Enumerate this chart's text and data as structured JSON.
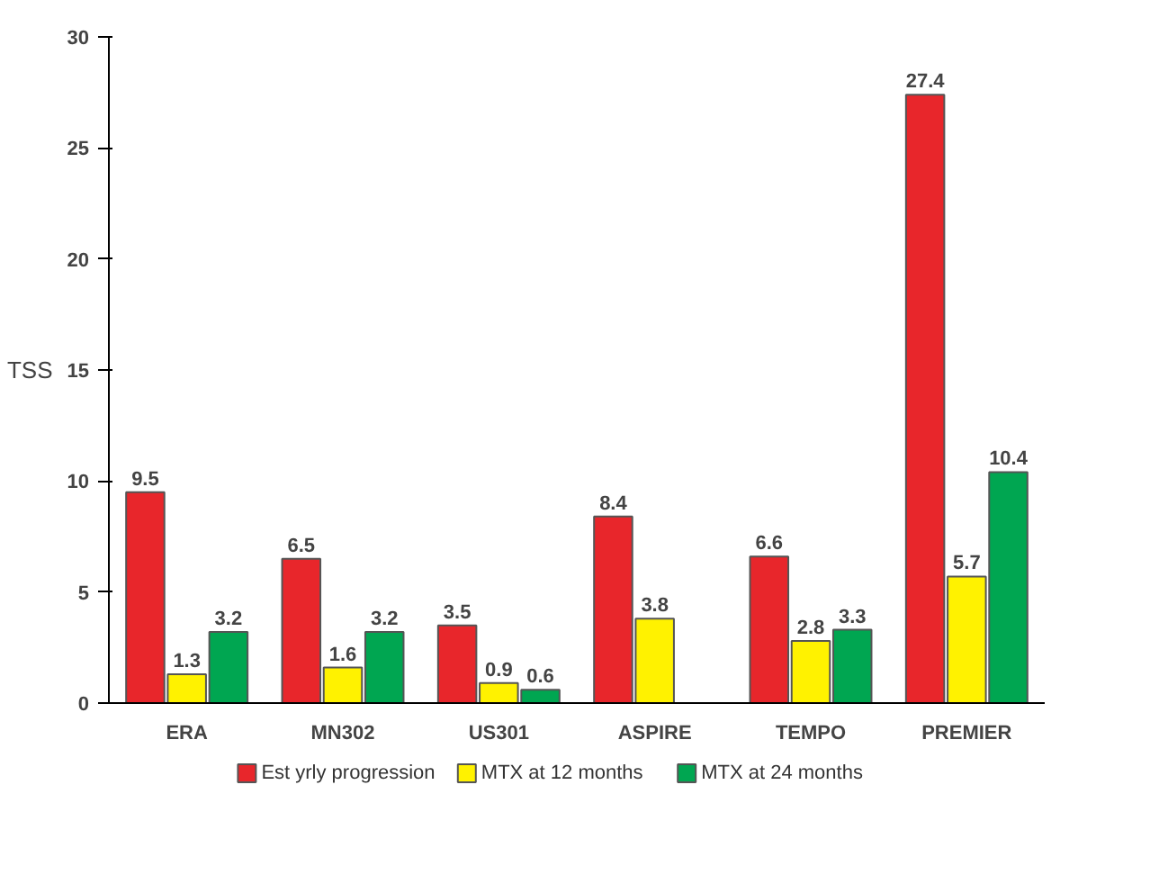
{
  "chart_data": {
    "type": "bar",
    "ylabel": "TSS",
    "categories": [
      "ERA",
      "MN302",
      "US301",
      "ASPIRE",
      "TEMPO",
      "PREMIER"
    ],
    "series": [
      {
        "name": "Est yrly progression",
        "color": "#e8262b",
        "values": [
          9.5,
          6.5,
          3.5,
          8.4,
          6.6,
          27.4
        ]
      },
      {
        "name": "MTX at 12 months",
        "color": "#fff200",
        "values": [
          1.3,
          1.6,
          0.9,
          3.8,
          2.8,
          5.7
        ]
      },
      {
        "name": "MTX at 24 months",
        "color": "#00a651",
        "values": [
          3.2,
          3.2,
          0.6,
          null,
          3.3,
          10.4
        ]
      }
    ],
    "ylim": [
      0,
      30
    ],
    "yticks": [
      0,
      5,
      10,
      15,
      20,
      25,
      30
    ],
    "grid": false,
    "legend": "bottom",
    "data_labels": true
  }
}
